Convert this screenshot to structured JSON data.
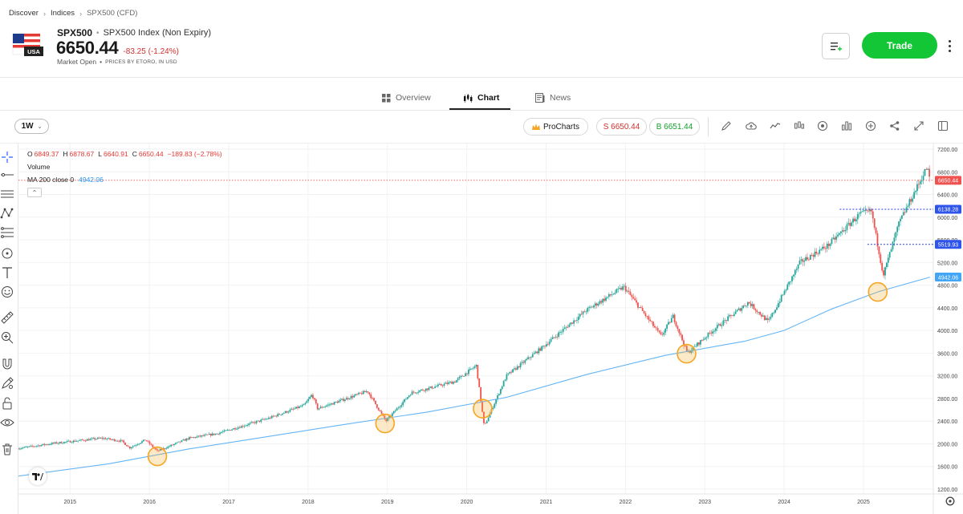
{
  "breadcrumb": {
    "item1": "Discover",
    "item2": "Indices",
    "current": "SPX500 (CFD)"
  },
  "instrument": {
    "symbol": "SPX500",
    "separator": "•",
    "description": "SPX500 Index (Non Expiry)",
    "price": "6650.44",
    "change": "-83.25 (-1.24%)",
    "market_status": "Market Open",
    "status_separator": "•",
    "price_source": "PRICES BY ETORO, IN USD",
    "flag_label": "USA"
  },
  "actions": {
    "trade_label": "Trade"
  },
  "tabs": [
    {
      "label": "Overview",
      "icon": "grid-icon"
    },
    {
      "label": "Chart",
      "icon": "candles-icon"
    },
    {
      "label": "News",
      "icon": "news-icon"
    }
  ],
  "toolbar": {
    "interval": "1W",
    "prochart_label": "ProCharts",
    "sell_label": "S 6650.44",
    "buy_label": "B 6651.44"
  },
  "legend": {
    "o_label": "O",
    "o_value": "6849.37",
    "h_label": "H",
    "h_value": "6878.67",
    "l_label": "L",
    "l_value": "6640.91",
    "c_label": "C",
    "c_value": "6650.44",
    "delta": "−189.83 (−2.78%)",
    "volume_label": "Volume",
    "ma_label": "MA 200 close 0",
    "ma_value": "4942.06"
  },
  "colors": {
    "up": "#26a69a",
    "down": "#ef5350",
    "ma": "#64b5f6",
    "trade": "#13c636",
    "sell": "#d32f2f",
    "buy": "#14a02c",
    "highlight": "#f5a623",
    "level": "#2f3fd6"
  },
  "chart_data": {
    "type": "candlestick",
    "interval": "1W",
    "y_ticks": [
      "7200.00",
      "6800.00",
      "6400.00",
      "6000.00",
      "5600.00",
      "5200.00",
      "4800.00",
      "4400.00",
      "4000.00",
      "3600.00",
      "3200.00",
      "2800.00",
      "2400.00",
      "2000.00",
      "1600.00",
      "1200.00"
    ],
    "x_ticks": [
      "2015",
      "2016",
      "2017",
      "2018",
      "2019",
      "2020",
      "2021",
      "2022",
      "2023",
      "2024",
      "2025"
    ],
    "ylim": [
      1200,
      7200
    ],
    "xlim": [
      2014.35,
      2025.88
    ],
    "grid": true,
    "price_trend": [
      [
        2014.35,
        1920
      ],
      [
        2014.8,
        2010
      ],
      [
        2015.4,
        2100
      ],
      [
        2015.65,
        2050
      ],
      [
        2015.75,
        1930
      ],
      [
        2015.95,
        2070
      ],
      [
        2016.1,
        1870
      ],
      [
        2016.5,
        2100
      ],
      [
        2016.85,
        2180
      ],
      [
        2017.5,
        2450
      ],
      [
        2017.95,
        2680
      ],
      [
        2018.05,
        2870
      ],
      [
        2018.12,
        2620
      ],
      [
        2018.75,
        2930
      ],
      [
        2018.98,
        2400
      ],
      [
        2019.3,
        2900
      ],
      [
        2019.85,
        3100
      ],
      [
        2020.12,
        3380
      ],
      [
        2020.22,
        2300
      ],
      [
        2020.5,
        3200
      ],
      [
        2020.95,
        3700
      ],
      [
        2021.5,
        4350
      ],
      [
        2021.98,
        4770
      ],
      [
        2022.45,
        3900
      ],
      [
        2022.6,
        4250
      ],
      [
        2022.78,
        3600
      ],
      [
        2023.1,
        4000
      ],
      [
        2023.55,
        4500
      ],
      [
        2023.8,
        4150
      ],
      [
        2024.2,
        5200
      ],
      [
        2024.55,
        5500
      ],
      [
        2024.95,
        6050
      ],
      [
        2025.1,
        6100
      ],
      [
        2025.25,
        4980
      ],
      [
        2025.45,
        5900
      ],
      [
        2025.7,
        6600
      ],
      [
        2025.8,
        6878
      ],
      [
        2025.84,
        6650
      ]
    ],
    "ma_series": [
      [
        2014.35,
        1430
      ],
      [
        2015.5,
        1650
      ],
      [
        2016.5,
        1910
      ],
      [
        2017.5,
        2130
      ],
      [
        2018.5,
        2350
      ],
      [
        2019.5,
        2560
      ],
      [
        2020.5,
        2820
      ],
      [
        2021.5,
        3220
      ],
      [
        2022.5,
        3560
      ],
      [
        2023.5,
        3810
      ],
      [
        2024.0,
        4000
      ],
      [
        2024.6,
        4380
      ],
      [
        2025.2,
        4690
      ],
      [
        2025.84,
        4942.06
      ]
    ],
    "highlights": [
      {
        "x": 2016.1,
        "y": 1780
      },
      {
        "x": 2018.97,
        "y": 2360
      },
      {
        "x": 2020.2,
        "y": 2620
      },
      {
        "x": 2022.77,
        "y": 3590
      },
      {
        "x": 2025.18,
        "y": 4680
      }
    ],
    "price_labels": [
      {
        "value": 6650.44,
        "text": "6650.44",
        "kind": "last"
      },
      {
        "value": 6138.28,
        "text": "6138.28",
        "kind": "level",
        "from_x": 2024.7
      },
      {
        "value": 5519.93,
        "text": "5519.93",
        "kind": "level",
        "from_x": 2025.05
      },
      {
        "value": 4942.06,
        "text": "4942.06",
        "kind": "ma"
      }
    ]
  }
}
